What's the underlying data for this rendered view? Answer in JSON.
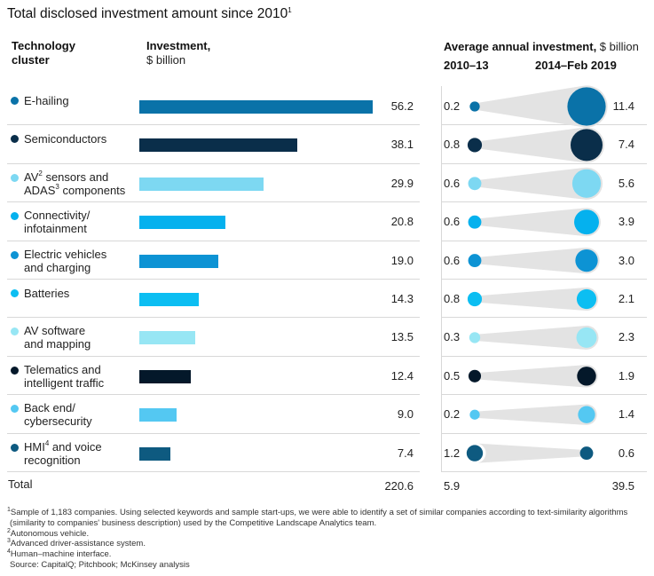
{
  "title": "Total disclosed investment amount since 2010",
  "title_note": "1",
  "headers": {
    "cluster_line1": "Technology",
    "cluster_line2": "cluster",
    "investment_bold": "Investment,",
    "investment_unit": "$ billion",
    "annual_bold": "Average annual investment,",
    "annual_unit": " $ billion",
    "period_1": "2010–13",
    "period_2": "2014–Feb 2019"
  },
  "chart_data": {
    "type": "bar",
    "title": "Total disclosed investment amount since 2010",
    "xlabel": "Investment, $ billion",
    "xlim": [
      0,
      56.2
    ],
    "rows": [
      {
        "parts": [
          {
            "t": "E-hailing"
          }
        ],
        "investment": 56.2,
        "inv_label": "56.2",
        "avg_2010_13": 0.2,
        "avg_2014_19": 11.4,
        "a_label": "0.2",
        "b_label": "11.4",
        "color": "#0a72a8"
      },
      {
        "parts": [
          {
            "t": "Semiconductors"
          }
        ],
        "investment": 38.1,
        "inv_label": "38.1",
        "avg_2010_13": 0.8,
        "avg_2014_19": 7.4,
        "a_label": "0.8",
        "b_label": "7.4",
        "color": "#0a2e4a"
      },
      {
        "parts": [
          {
            "t": "AV"
          },
          {
            "t": "2",
            "sup": true
          },
          {
            "t": " sensors and"
          },
          {
            "br": true
          },
          {
            "t": "ADAS"
          },
          {
            "t": "3",
            "sup": true
          },
          {
            "t": " components"
          }
        ],
        "investment": 29.9,
        "inv_label": "29.9",
        "avg_2010_13": 0.6,
        "avg_2014_19": 5.6,
        "a_label": "0.6",
        "b_label": "5.6",
        "color": "#7dd8f2"
      },
      {
        "parts": [
          {
            "t": "Connectivity/"
          },
          {
            "br": true
          },
          {
            "t": "infotainment"
          }
        ],
        "investment": 20.8,
        "inv_label": "20.8",
        "avg_2010_13": 0.6,
        "avg_2014_19": 3.9,
        "a_label": "0.6",
        "b_label": "3.9",
        "color": "#05b1ee"
      },
      {
        "parts": [
          {
            "t": "Electric vehicles"
          },
          {
            "br": true
          },
          {
            "t": "and charging"
          }
        ],
        "investment": 19.0,
        "inv_label": "19.0",
        "avg_2010_13": 0.6,
        "avg_2014_19": 3.0,
        "a_label": "0.6",
        "b_label": "3.0",
        "color": "#0d93d4"
      },
      {
        "parts": [
          {
            "t": "Batteries"
          }
        ],
        "investment": 14.3,
        "inv_label": "14.3",
        "avg_2010_13": 0.8,
        "avg_2014_19": 2.1,
        "a_label": "0.8",
        "b_label": "2.1",
        "color": "#0cbef2"
      },
      {
        "parts": [
          {
            "t": "AV software"
          },
          {
            "br": true
          },
          {
            "t": "and mapping"
          }
        ],
        "investment": 13.5,
        "inv_label": "13.5",
        "avg_2010_13": 0.3,
        "avg_2014_19": 2.3,
        "a_label": "0.3",
        "b_label": "2.3",
        "color": "#97e6f4"
      },
      {
        "parts": [
          {
            "t": "Telematics and"
          },
          {
            "br": true
          },
          {
            "t": "intelligent traffic"
          }
        ],
        "investment": 12.4,
        "inv_label": "12.4",
        "avg_2010_13": 0.5,
        "avg_2014_19": 1.9,
        "a_label": "0.5",
        "b_label": "1.9",
        "color": "#04182a"
      },
      {
        "parts": [
          {
            "t": "Back end/"
          },
          {
            "br": true
          },
          {
            "t": "cybersecurity"
          }
        ],
        "investment": 9.0,
        "inv_label": "9.0",
        "avg_2010_13": 0.2,
        "avg_2014_19": 1.4,
        "a_label": "0.2",
        "b_label": "1.4",
        "color": "#54c8f2"
      },
      {
        "parts": [
          {
            "t": "HMI"
          },
          {
            "t": "4",
            "sup": true
          },
          {
            "t": " and voice"
          },
          {
            "br": true
          },
          {
            "t": "recognition"
          }
        ],
        "investment": 7.4,
        "inv_label": "7.4",
        "avg_2010_13": 1.2,
        "avg_2014_19": 0.6,
        "a_label": "1.2",
        "b_label": "0.6",
        "color": "#0e5a80"
      }
    ],
    "total": {
      "label": "Total",
      "investment": "220.6",
      "avg_2010_13": "5.9",
      "avg_2014_19": "39.5"
    },
    "bubble_background": "#e3e3e3"
  },
  "footnotes": [
    "Sample of 1,183 companies. Using selected keywords and sample start-ups, we were able to identify a set of similar companies according to text-similarity algorithms",
    "(similarity to companies' business description) used by the Competitive Landscape Analytics team.",
    "Autonomous vehicle.",
    "Advanced driver-assistance system.",
    "Human–machine interface.",
    "Source: CapitalQ; Pitchbook; McKinsey analysis"
  ],
  "footnote_marks": [
    "1",
    "",
    "2",
    "3",
    "4",
    ""
  ]
}
